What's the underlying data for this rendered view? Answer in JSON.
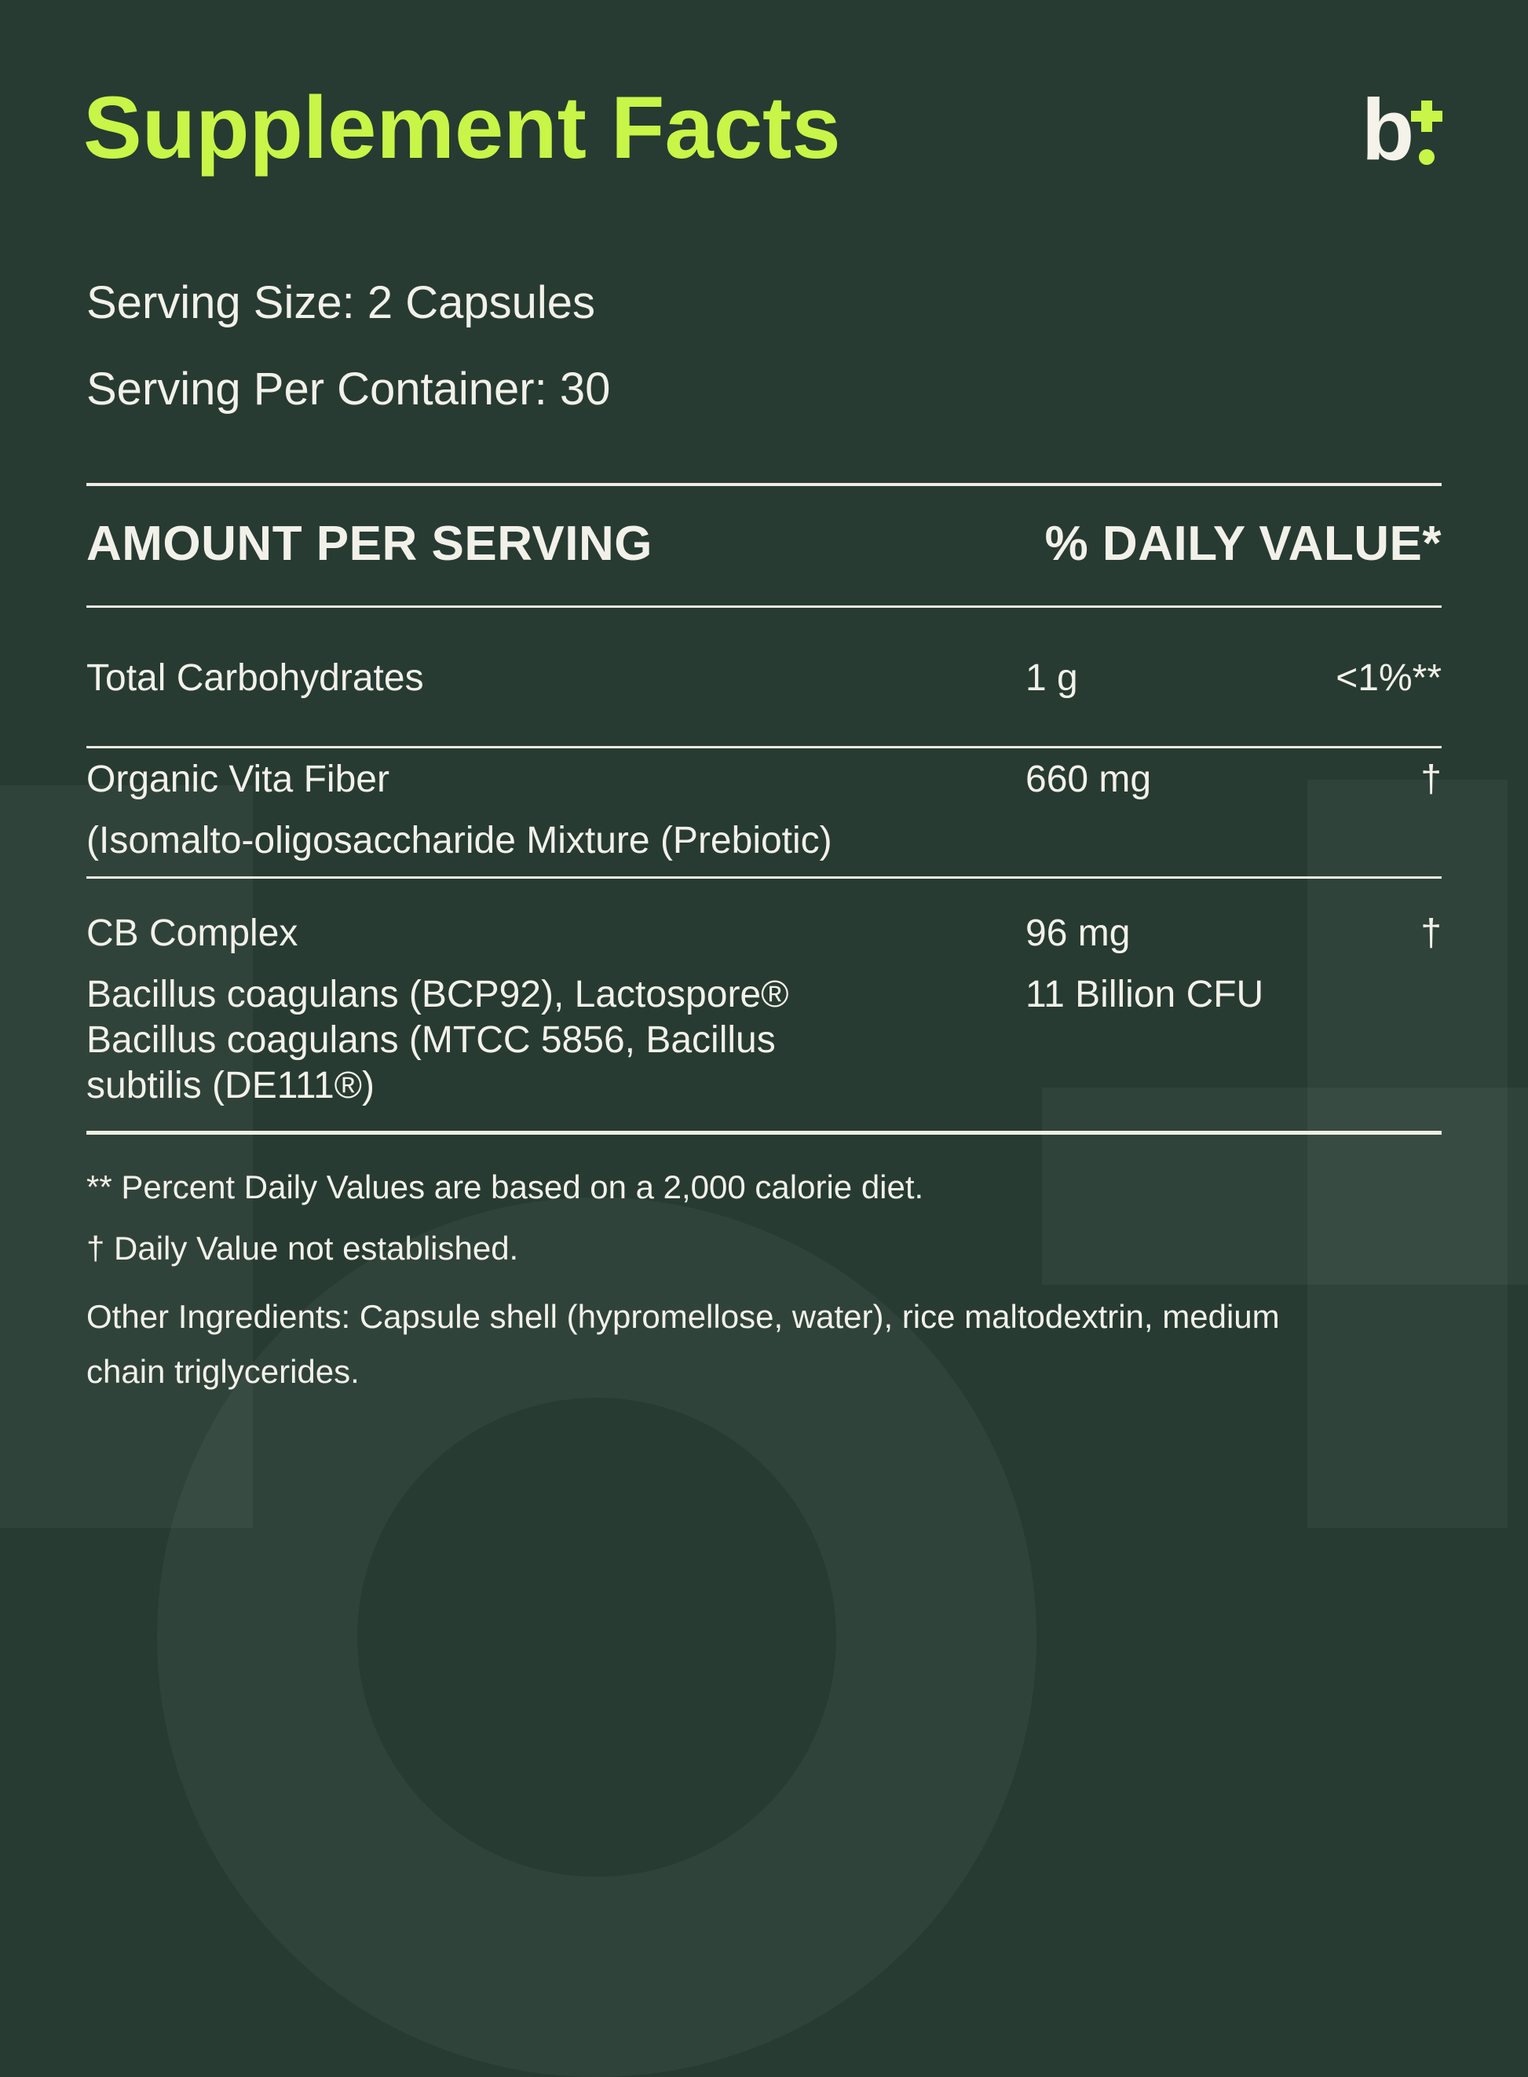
{
  "theme": {
    "background": "#273B32",
    "accent": "#C8F547",
    "text": "#F2F1E9",
    "rule": "#EFEDE3"
  },
  "header": {
    "title": "Supplement Facts",
    "logo": {
      "letter": "b",
      "plus_icon": "plus",
      "dot_icon": "dot"
    }
  },
  "serving": {
    "size": "Serving Size: 2 Capsules",
    "per_container": "Serving Per Container: 30"
  },
  "table": {
    "header": {
      "amount": "AMOUNT PER SERVING",
      "daily_value": "% DAILY VALUE*"
    },
    "rows": [
      {
        "name": "Total Carbohydrates",
        "amount": "1 g",
        "daily_value": "<1%**"
      },
      {
        "name": "Organic Vita Fiber",
        "name_sub": [
          "(Isomalto-oligosaccharide Mixture (Prebiotic)"
        ],
        "amount": "660 mg",
        "daily_value": "†"
      },
      {
        "name": "CB Complex",
        "name_sub": [
          "Bacillus coagulans (BCP92), Lactospore®",
          "Bacillus coagulans (MTCC 5856, Bacillus",
          "subtilis (DE111®)"
        ],
        "amount": "96 mg",
        "amount_sub": "11 Billion CFU",
        "daily_value": "†"
      }
    ]
  },
  "footnotes": {
    "percent": "** Percent Daily Values are based on a 2,000 calorie diet.",
    "dagger": "† Daily Value not established.",
    "other_line1": "Other Ingredients: Capsule shell (hypromellose, water), rice maltodextrin, medium",
    "other_line2": "chain triglycerides."
  }
}
